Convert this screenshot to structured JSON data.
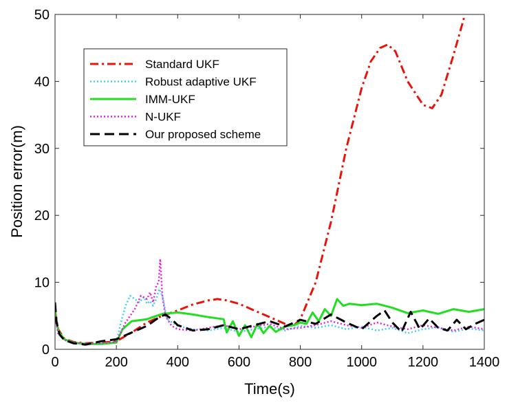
{
  "chart_data": {
    "type": "line",
    "title": "",
    "xlabel": "Time(s)",
    "ylabel": "Position error(m)",
    "xlim": [
      0,
      1400
    ],
    "ylim": [
      0,
      50
    ],
    "xticks": [
      0,
      200,
      400,
      600,
      800,
      1000,
      1200,
      1400
    ],
    "yticks": [
      0,
      10,
      20,
      30,
      40,
      50
    ],
    "grid": false,
    "legend_position": "top-left",
    "series": [
      {
        "name": "Standard UKF",
        "color": "#e8140c",
        "style": "dashdot",
        "x": [
          0,
          10,
          30,
          60,
          100,
          150,
          200,
          250,
          300,
          350,
          400,
          450,
          500,
          530,
          560,
          600,
          650,
          700,
          750,
          780,
          800,
          850,
          900,
          950,
          1000,
          1030,
          1060,
          1085,
          1110,
          1150,
          1200,
          1230,
          1260,
          1300,
          1340
        ],
        "values": [
          5.8,
          3.0,
          1.6,
          1.1,
          0.9,
          1.0,
          1.2,
          2.5,
          4.0,
          5.0,
          5.8,
          6.7,
          7.3,
          7.5,
          7.3,
          6.8,
          5.8,
          4.8,
          3.8,
          3.6,
          4.5,
          10.0,
          19.0,
          30.0,
          39.0,
          43.0,
          45.0,
          45.5,
          44.5,
          40.0,
          36.5,
          36.0,
          38.0,
          44.0,
          50.5
        ]
      },
      {
        "name": "Robust adaptive UKF",
        "color": "#3fd0f0",
        "style": "dotted",
        "x": [
          0,
          10,
          30,
          60,
          100,
          150,
          200,
          215,
          230,
          245,
          260,
          275,
          290,
          300,
          310,
          320,
          330,
          340,
          350,
          365,
          400,
          450,
          500,
          550,
          600,
          650,
          700,
          750,
          800,
          850,
          900,
          950,
          1000,
          1050,
          1100,
          1150,
          1200,
          1250,
          1300,
          1350,
          1400
        ],
        "values": [
          5.0,
          2.6,
          1.4,
          1.0,
          0.8,
          0.9,
          1.1,
          4.0,
          6.5,
          8.0,
          7.5,
          7.0,
          7.8,
          6.8,
          7.2,
          6.5,
          7.5,
          9.0,
          8.0,
          4.5,
          3.5,
          3.0,
          2.8,
          3.2,
          2.6,
          3.0,
          3.4,
          2.8,
          3.5,
          3.2,
          3.6,
          3.0,
          3.4,
          2.8,
          3.2,
          2.4,
          3.0,
          3.3,
          2.6,
          3.1,
          2.8
        ]
      },
      {
        "name": "IMM-UKF",
        "color": "#22dd22",
        "style": "solid",
        "x": [
          0,
          10,
          30,
          60,
          100,
          150,
          200,
          220,
          250,
          300,
          350,
          400,
          450,
          500,
          550,
          560,
          580,
          600,
          620,
          640,
          660,
          680,
          700,
          720,
          750,
          780,
          800,
          820,
          840,
          860,
          880,
          900,
          920,
          940,
          960,
          1000,
          1050,
          1100,
          1150,
          1200,
          1250,
          1300,
          1350,
          1400
        ],
        "values": [
          5.5,
          2.8,
          1.5,
          1.0,
          0.8,
          0.8,
          1.0,
          3.0,
          4.2,
          4.5,
          5.3,
          5.5,
          5.2,
          4.8,
          4.5,
          2.5,
          4.2,
          2.0,
          3.6,
          1.8,
          3.8,
          2.4,
          3.5,
          2.6,
          3.4,
          3.6,
          4.0,
          3.8,
          5.5,
          4.2,
          6.0,
          5.0,
          7.5,
          6.5,
          6.8,
          6.6,
          6.8,
          6.2,
          5.4,
          5.8,
          5.3,
          6.0,
          5.6,
          6.0
        ]
      },
      {
        "name": "N-UKF",
        "color": "#e020e0",
        "style": "dotted",
        "x": [
          0,
          10,
          30,
          60,
          100,
          150,
          200,
          230,
          260,
          280,
          300,
          310,
          320,
          330,
          338,
          343,
          350,
          360,
          380,
          400,
          450,
          500,
          550,
          600,
          650,
          700,
          750,
          800,
          850,
          900,
          950,
          1000,
          1050,
          1100,
          1150,
          1200,
          1250,
          1300,
          1350,
          1400
        ],
        "values": [
          5.0,
          2.4,
          1.4,
          1.0,
          0.8,
          0.9,
          1.1,
          4.0,
          6.0,
          8.0,
          7.5,
          8.5,
          7.0,
          9.5,
          10.0,
          13.5,
          8.0,
          5.0,
          3.5,
          3.0,
          2.8,
          3.2,
          3.6,
          3.0,
          3.4,
          3.8,
          3.0,
          3.2,
          3.6,
          4.2,
          3.6,
          3.2,
          4.0,
          3.4,
          3.0,
          3.6,
          3.2,
          2.8,
          3.4,
          3.0
        ]
      },
      {
        "name": "Our proposed scheme",
        "color": "#000000",
        "style": "dashed",
        "x": [
          0,
          5,
          15,
          30,
          60,
          100,
          150,
          200,
          250,
          300,
          340,
          360,
          380,
          400,
          450,
          500,
          550,
          600,
          650,
          700,
          750,
          800,
          850,
          900,
          950,
          1000,
          1050,
          1075,
          1100,
          1130,
          1160,
          1190,
          1220,
          1250,
          1280,
          1310,
          1340,
          1370,
          1400
        ],
        "values": [
          7.0,
          4.0,
          2.2,
          1.4,
          0.9,
          0.7,
          1.2,
          1.5,
          2.5,
          3.5,
          4.8,
          5.2,
          4.5,
          3.6,
          2.8,
          3.0,
          3.6,
          3.0,
          3.6,
          4.2,
          3.4,
          4.4,
          3.8,
          5.2,
          4.0,
          3.0,
          5.0,
          5.8,
          4.0,
          2.6,
          5.6,
          3.0,
          4.6,
          3.2,
          2.8,
          4.4,
          3.0,
          3.8,
          4.4
        ]
      }
    ]
  }
}
